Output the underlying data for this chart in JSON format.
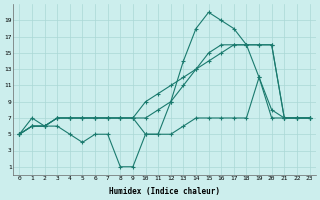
{
  "xlabel": "Humidex (Indice chaleur)",
  "bg_color": "#cceeed",
  "grid_color": "#aad8d6",
  "line_color": "#1a7a6e",
  "xlim": [
    -0.5,
    23.5
  ],
  "ylim": [
    0,
    21
  ],
  "xticks": [
    0,
    1,
    2,
    3,
    4,
    5,
    6,
    7,
    8,
    9,
    10,
    11,
    12,
    13,
    14,
    15,
    16,
    17,
    18,
    19,
    20,
    21,
    22,
    23
  ],
  "yticks": [
    1,
    3,
    5,
    7,
    9,
    11,
    13,
    15,
    17,
    19
  ],
  "series": [
    [
      5,
      7,
      6,
      6,
      5,
      4,
      5,
      5,
      1,
      1,
      5,
      5,
      9,
      14,
      18,
      20,
      19,
      18,
      16,
      12,
      7,
      7,
      7,
      7
    ],
    [
      5,
      6,
      6,
      7,
      7,
      7,
      7,
      7,
      7,
      7,
      7,
      8,
      9,
      11,
      13,
      15,
      16,
      16,
      16,
      16,
      16,
      7,
      7,
      7
    ],
    [
      5,
      6,
      6,
      7,
      7,
      7,
      7,
      7,
      7,
      7,
      9,
      10,
      11,
      12,
      13,
      14,
      15,
      16,
      16,
      16,
      16,
      7,
      7,
      7
    ],
    [
      5,
      6,
      6,
      7,
      7,
      7,
      7,
      7,
      7,
      7,
      5,
      5,
      5,
      6,
      7,
      7,
      7,
      7,
      7,
      12,
      8,
      7,
      7,
      7
    ]
  ]
}
